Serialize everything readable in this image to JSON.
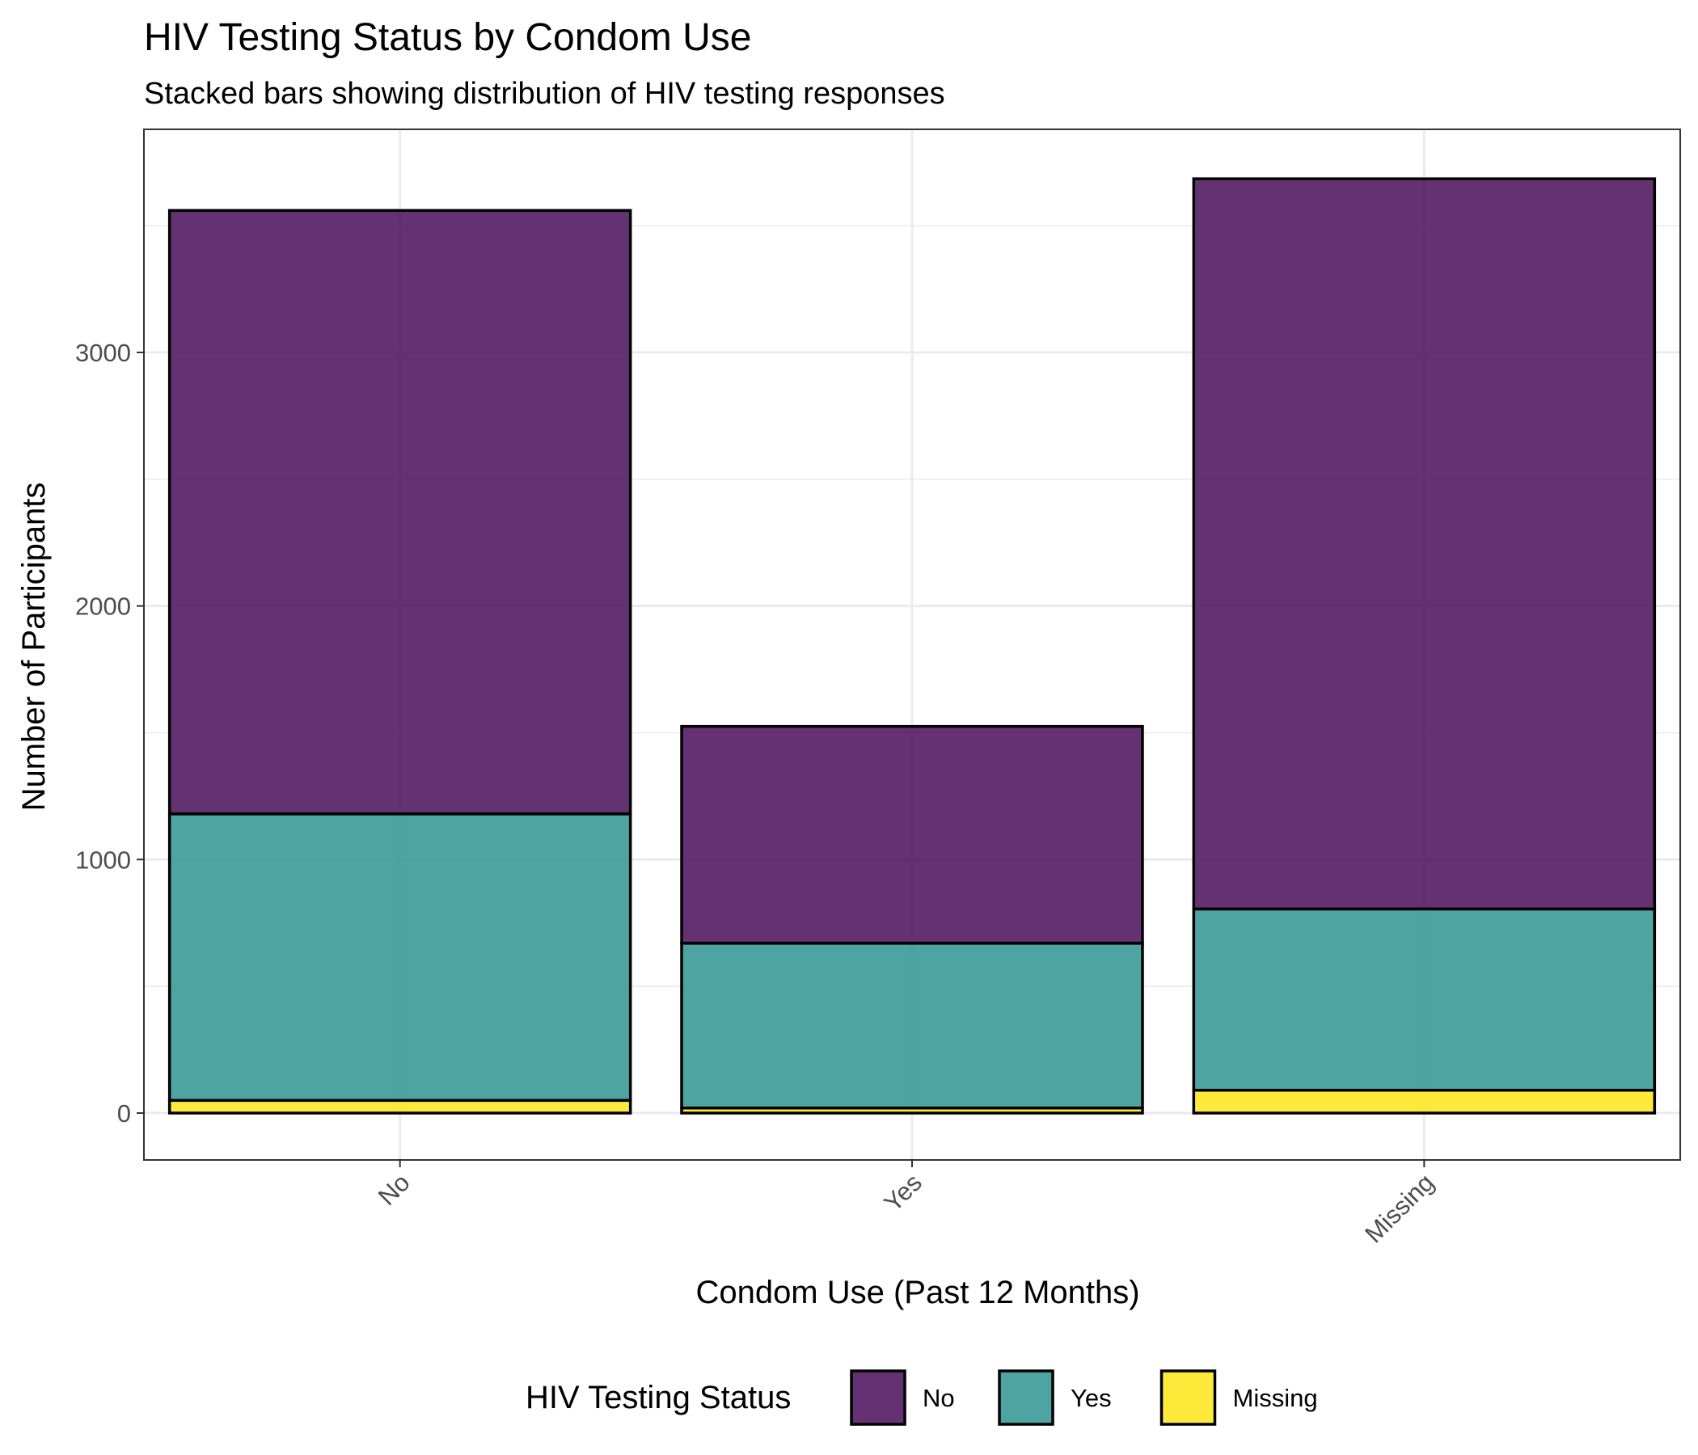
{
  "chart_data": {
    "type": "bar",
    "stacked": true,
    "title": "HIV Testing Status by Condom Use",
    "subtitle": "Stacked bars showing distribution of HIV testing responses",
    "xlabel": "Condom Use (Past 12 Months)",
    "ylabel": "Number of Participants",
    "categories": [
      "No",
      "Yes",
      "Missing"
    ],
    "series": [
      {
        "name": "Missing",
        "color": "#FDE725",
        "values": [
          50,
          20,
          90
        ]
      },
      {
        "name": "Yes",
        "color": "#3A9A96",
        "values": [
          1130,
          650,
          715
        ]
      },
      {
        "name": "No",
        "color": "#531C64",
        "values": [
          2380,
          855,
          2880
        ]
      }
    ],
    "ylim": [
      -185,
      3880
    ],
    "yticks": [
      0,
      1000,
      2000,
      3000
    ],
    "ytick_labels": [
      "0",
      "1000",
      "2000",
      "3000"
    ],
    "grid": true,
    "legend": {
      "title": "HIV Testing Status",
      "position": "bottom",
      "items": [
        {
          "label": "No",
          "color": "#531C64"
        },
        {
          "label": "Yes",
          "color": "#3A9A96"
        },
        {
          "label": "Missing",
          "color": "#FDE725"
        }
      ]
    }
  }
}
